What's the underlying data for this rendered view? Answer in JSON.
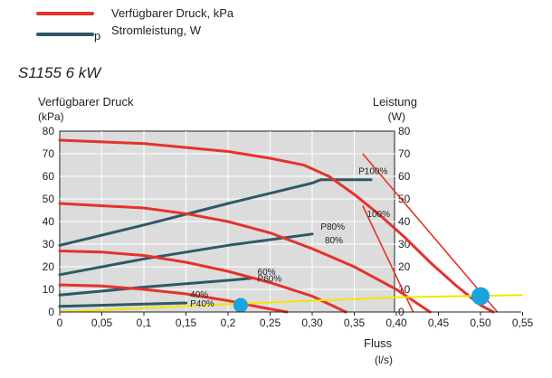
{
  "legend": {
    "pressure_label": "Verfügbarer Druck, kPa",
    "power_label": "Stromleistung, W",
    "power_marker": "p",
    "pressure_color": "#e4332b",
    "power_color": "#2f5866"
  },
  "model_title": "S1155 6 kW",
  "chart_data": {
    "type": "line",
    "title": "S1155 6 kW",
    "ylabel_left": "Verfügbarer Druck",
    "ylabel_left_unit": "(kPa)",
    "ylabel_right": "Leistung",
    "ylabel_right_unit": "(W)",
    "xlabel": "Fluss",
    "xlabel_unit": "(l/s)",
    "xlim": [
      0,
      0.55
    ],
    "ylim": [
      0,
      80
    ],
    "x_ticks": [
      "0",
      "0,05",
      "0,1",
      "0,15",
      "0,2",
      "0,25",
      "0,30",
      "0,35",
      "0,40",
      "0,45",
      "0,50",
      "0,55"
    ],
    "y_ticks": [
      "0",
      "10",
      "20",
      "30",
      "40",
      "50",
      "60",
      "70",
      "80"
    ],
    "grid": true,
    "pressure_series": [
      {
        "name": "100%",
        "points": [
          [
            0,
            76
          ],
          [
            0.1,
            74.5
          ],
          [
            0.2,
            71
          ],
          [
            0.25,
            68
          ],
          [
            0.29,
            65
          ],
          [
            0.32,
            60
          ],
          [
            0.35,
            52
          ],
          [
            0.38,
            43
          ],
          [
            0.41,
            33
          ],
          [
            0.44,
            22
          ],
          [
            0.47,
            12
          ],
          [
            0.5,
            3
          ],
          [
            0.515,
            0
          ]
        ]
      },
      {
        "name": "80%",
        "points": [
          [
            0,
            48
          ],
          [
            0.1,
            46
          ],
          [
            0.15,
            43.5
          ],
          [
            0.2,
            40
          ],
          [
            0.25,
            35
          ],
          [
            0.3,
            28
          ],
          [
            0.35,
            20
          ],
          [
            0.4,
            10
          ],
          [
            0.44,
            0
          ]
        ]
      },
      {
        "name": "60%",
        "points": [
          [
            0,
            27
          ],
          [
            0.05,
            26.5
          ],
          [
            0.1,
            25
          ],
          [
            0.15,
            22
          ],
          [
            0.2,
            18
          ],
          [
            0.25,
            13
          ],
          [
            0.3,
            7
          ],
          [
            0.34,
            0
          ]
        ]
      },
      {
        "name": "40%",
        "points": [
          [
            0,
            12
          ],
          [
            0.05,
            11.5
          ],
          [
            0.1,
            10
          ],
          [
            0.15,
            8
          ],
          [
            0.2,
            5
          ],
          [
            0.24,
            2
          ],
          [
            0.27,
            0
          ]
        ]
      }
    ],
    "power_series": [
      {
        "name": "P100%",
        "points": [
          [
            0,
            29.5
          ],
          [
            0.1,
            38.5
          ],
          [
            0.2,
            48
          ],
          [
            0.3,
            57
          ],
          [
            0.31,
            58.5
          ],
          [
            0.37,
            58.5
          ]
        ]
      },
      {
        "name": "P80%",
        "points": [
          [
            0,
            16.5
          ],
          [
            0.1,
            23.5
          ],
          [
            0.2,
            29.5
          ],
          [
            0.3,
            34.5
          ]
        ]
      },
      {
        "name": "P60%",
        "points": [
          [
            0,
            7.5
          ],
          [
            0.1,
            11
          ],
          [
            0.2,
            14
          ],
          [
            0.23,
            15
          ]
        ]
      },
      {
        "name": "P40%",
        "points": [
          [
            0,
            2.5
          ],
          [
            0.15,
            4
          ]
        ]
      }
    ],
    "system_curve": {
      "color": "#f2e600",
      "points": [
        [
          0,
          0
        ],
        [
          0.2,
          3.5
        ],
        [
          0.4,
          6.5
        ],
        [
          0.55,
          7.5
        ]
      ]
    },
    "operating_points": [
      {
        "x": 0.215,
        "y": 3,
        "color": "#1aa3dd"
      },
      {
        "x": 0.5,
        "y": 7,
        "color": "#1aa3dd"
      }
    ],
    "extra_lines": [
      {
        "points": [
          [
            0.36,
            70
          ],
          [
            0.52,
            0
          ]
        ]
      },
      {
        "points": [
          [
            0.36,
            47
          ],
          [
            0.42,
            0
          ]
        ]
      }
    ]
  }
}
